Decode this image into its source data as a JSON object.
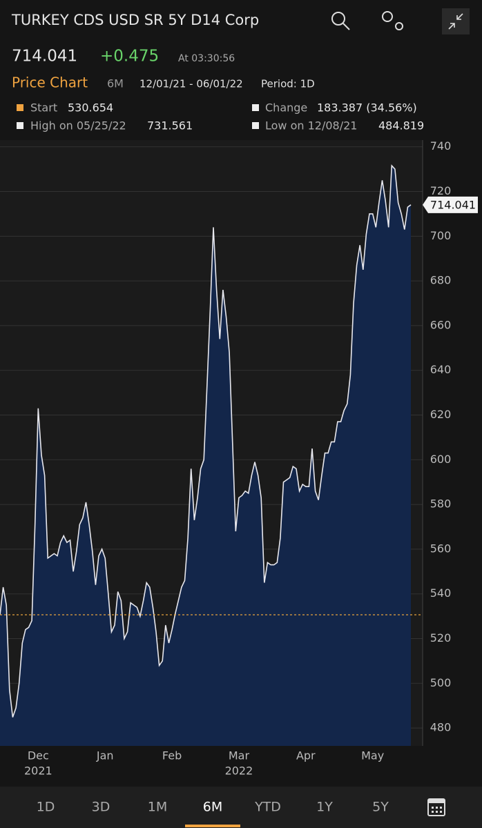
{
  "header": {
    "title": "TURKEY CDS USD SR 5Y D14 Corp",
    "price": "714.041",
    "change": "+0.475",
    "time": "At 03:30:56"
  },
  "subheader": {
    "label": "Price Chart",
    "range": "6M",
    "dates": "12/01/21 - 06/01/22",
    "period": "Period: 1D"
  },
  "stats": {
    "start_label": "Start",
    "start_value": "530.654",
    "change_label": "Change",
    "change_value": "183.387 (34.56%)",
    "high_label": "High on 05/25/22",
    "high_value": "731.561",
    "low_label": "Low on 12/08/21",
    "low_value": "484.819"
  },
  "chart_data": {
    "type": "area",
    "color": "#e8e8ee",
    "fill": "#13264a",
    "reference_line": 530.654,
    "reference_color": "#e8a33c",
    "categories": [
      null,
      null,
      null,
      null,
      null,
      null,
      null,
      null,
      null,
      null,
      null,
      null,
      "Dec",
      null,
      null,
      null,
      null,
      null,
      null,
      null,
      null,
      null,
      null,
      null,
      null,
      null,
      null,
      null,
      null,
      null,
      null,
      null,
      null,
      "Jan",
      null,
      null,
      null,
      null,
      null,
      null,
      null,
      null,
      null,
      null,
      null,
      null,
      null,
      null,
      null,
      null,
      null,
      null,
      null,
      null,
      "Feb",
      null,
      null,
      null,
      null,
      null,
      null,
      null,
      null,
      null,
      null,
      null,
      null,
      null,
      null,
      null,
      null,
      null,
      null,
      null,
      null,
      "Mar",
      null,
      null,
      null,
      null,
      null,
      null,
      null,
      null,
      null,
      null,
      null,
      null,
      null,
      null,
      null,
      null,
      null,
      null,
      null,
      null,
      "Apr",
      null,
      null,
      null,
      null,
      null,
      null,
      null,
      null,
      null,
      null,
      null,
      null,
      null,
      null,
      null,
      null,
      null,
      null,
      null,
      null,
      "May",
      null,
      null,
      null,
      null,
      null,
      null,
      null,
      null,
      null,
      null,
      null,
      null
    ],
    "year_labels": [
      null,
      null,
      null,
      null,
      null,
      null,
      null,
      null,
      null,
      null,
      null,
      null,
      "2021",
      null,
      null,
      null,
      null,
      null,
      null,
      null,
      null,
      null,
      null,
      null,
      null,
      null,
      null,
      null,
      null,
      null,
      null,
      null,
      null,
      null,
      null,
      null,
      null,
      null,
      null,
      null,
      null,
      null,
      null,
      null,
      null,
      null,
      null,
      null,
      null,
      null,
      null,
      null,
      null,
      null,
      null,
      null,
      null,
      null,
      null,
      null,
      null,
      null,
      null,
      null,
      null,
      null,
      null,
      null,
      null,
      null,
      null,
      null,
      null,
      null,
      null,
      "2022",
      null,
      null,
      null,
      null,
      null,
      null,
      null,
      null,
      null,
      null,
      null,
      null,
      null,
      null,
      null,
      null,
      null,
      null,
      null,
      null,
      null,
      null,
      null,
      null,
      null,
      null,
      null,
      null,
      null,
      null,
      null,
      null,
      null,
      null,
      null,
      null,
      null,
      null,
      null,
      null,
      null,
      null,
      null,
      null,
      null,
      null,
      null,
      null,
      null,
      null,
      null,
      null,
      null,
      null,
      null,
      null,
      null,
      null
    ],
    "values": [
      530.654,
      543,
      535,
      497,
      484.819,
      489,
      500,
      518,
      524,
      525,
      528,
      571,
      623,
      602,
      593,
      556,
      557,
      558,
      557,
      563,
      566,
      563,
      564,
      550,
      559,
      571,
      574,
      581,
      571,
      559,
      544,
      557,
      560,
      556,
      540,
      523,
      526,
      541,
      537,
      520,
      523,
      536,
      535,
      534,
      530,
      537,
      545,
      543,
      534,
      523,
      508,
      510,
      526,
      518,
      524,
      531,
      537,
      543,
      546,
      565,
      596,
      573,
      583,
      596,
      600,
      633,
      667,
      704,
      676,
      654,
      676,
      664,
      648,
      608,
      568,
      583,
      584,
      586,
      585,
      593,
      599,
      593,
      583,
      545,
      554,
      553,
      553,
      554,
      565,
      590,
      591,
      592,
      597,
      596,
      586,
      589,
      588,
      588,
      605,
      586,
      582,
      593,
      603,
      603,
      608,
      608,
      617,
      617,
      622,
      625,
      638,
      670,
      687,
      696,
      685,
      701,
      710,
      710,
      704,
      715,
      725,
      716,
      704,
      731.561,
      730,
      715,
      710,
      703,
      713,
      714.041
    ],
    "ylim": [
      472,
      743
    ],
    "yticks": [
      480,
      500,
      520,
      540,
      560,
      580,
      600,
      620,
      640,
      660,
      680,
      700,
      720,
      740
    ],
    "grid": true
  },
  "tabs": [
    {
      "label": "1D"
    },
    {
      "label": "3D"
    },
    {
      "label": "1M"
    },
    {
      "label": "6M",
      "selected": true
    },
    {
      "label": "YTD"
    },
    {
      "label": "1Y"
    },
    {
      "label": "5Y"
    }
  ]
}
